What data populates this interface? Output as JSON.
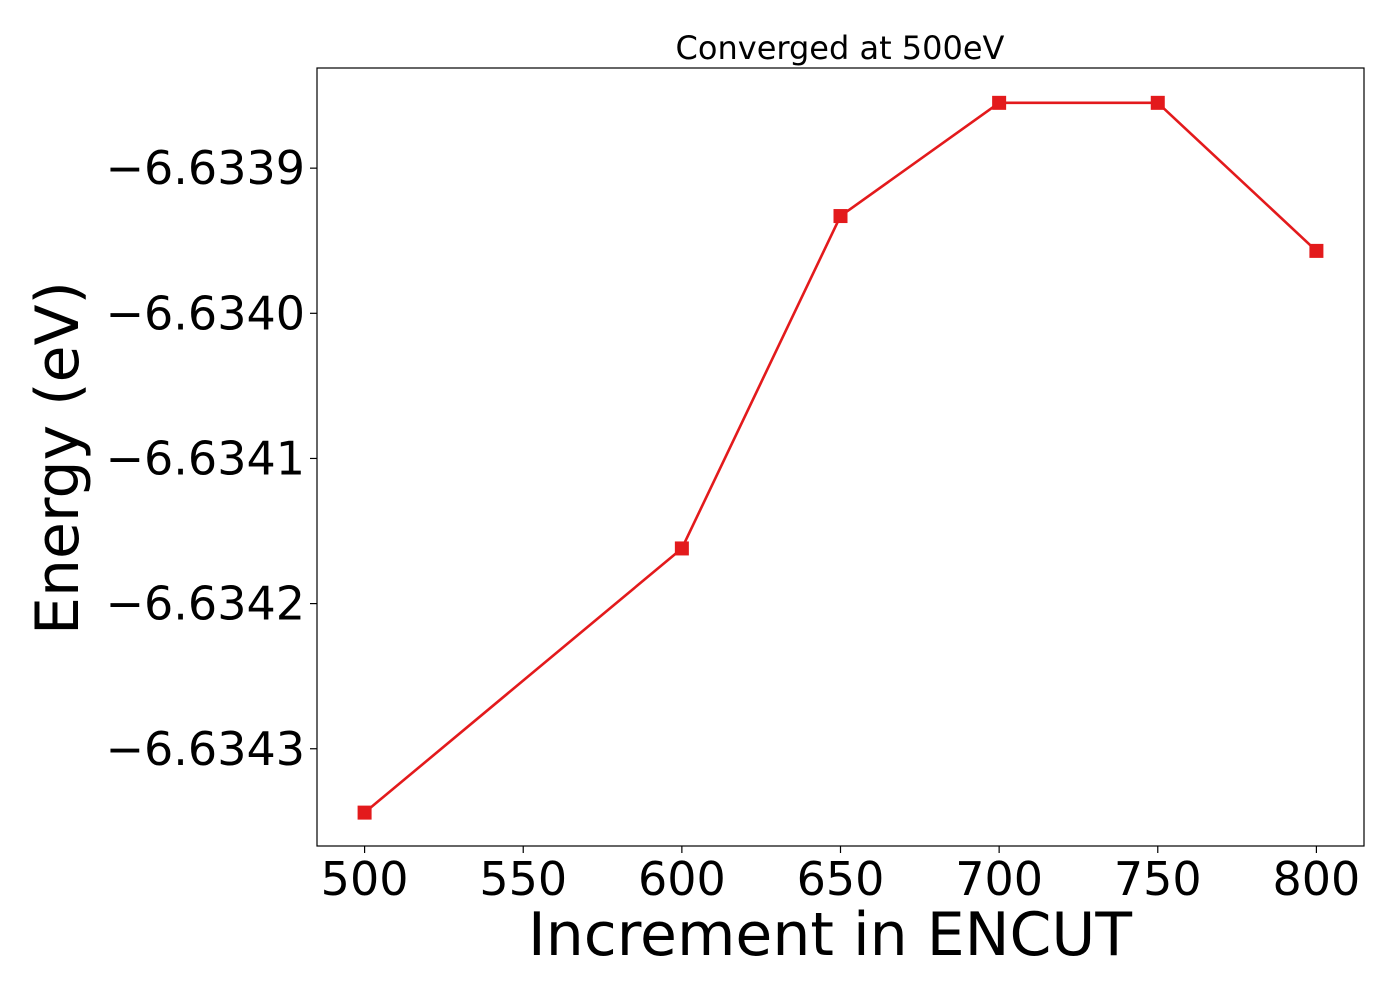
{
  "chart_data": {
    "type": "line",
    "title": "Converged at 500eV",
    "xlabel": "Increment in ENCUT",
    "ylabel": "Energy (eV)",
    "x": [
      500,
      600,
      650,
      700,
      750,
      800
    ],
    "series": [
      {
        "values": [
          -6.634344,
          -6.634162,
          -6.633933,
          -6.633855,
          -6.633855,
          -6.633957
        ],
        "color": "#e31a1c",
        "marker": "square"
      }
    ],
    "xlim": [
      485,
      815
    ],
    "ylim": [
      -6.634367,
      -6.633831
    ],
    "xticks": [
      500,
      550,
      600,
      650,
      700,
      750,
      800
    ],
    "xtick_labels": [
      "500",
      "550",
      "600",
      "650",
      "700",
      "750",
      "800"
    ],
    "yticks": [
      -6.6339,
      -6.634,
      -6.6341,
      -6.6342,
      -6.6343
    ],
    "ytick_labels": [
      "−6.6339",
      "−6.6340",
      "−6.6341",
      "−6.6342",
      "−6.6343"
    ],
    "grid": false,
    "legend": "none"
  }
}
